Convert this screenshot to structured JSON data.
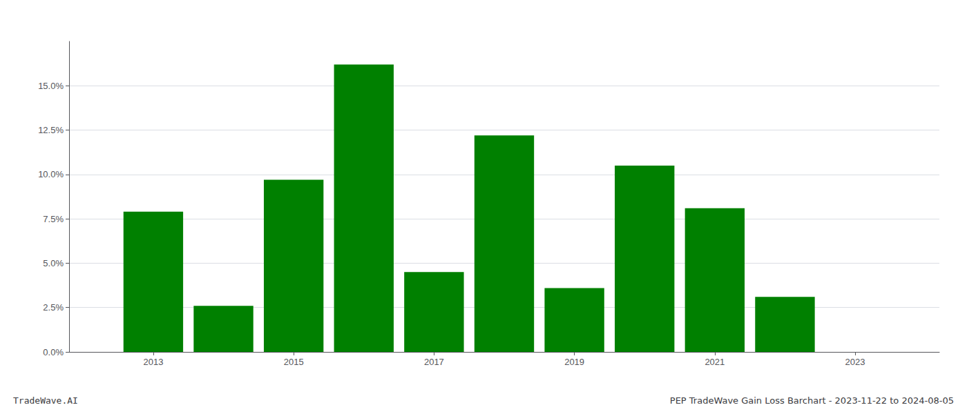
{
  "chart_data": {
    "type": "bar",
    "title": "PEP TradeWave Gain Loss Barchart - 2023-11-22 to 2024-08-05",
    "annotations": [
      "TradeWave.AI"
    ],
    "x": [
      2013,
      2014,
      2015,
      2016,
      2017,
      2018,
      2019,
      2020,
      2021,
      2022,
      2023
    ],
    "values": [
      0.079,
      0.026,
      0.097,
      0.162,
      0.045,
      0.122,
      0.036,
      0.105,
      0.081,
      0.031,
      0.0
    ],
    "color": "#008000",
    "xlim": [
      2011.8,
      2024.2
    ],
    "xticks": [
      2013,
      2015,
      2017,
      2019,
      2021,
      2023
    ],
    "ylim": [
      0,
      0.175
    ],
    "yticks": [
      {
        "value": 0.0,
        "label": "0.0%"
      },
      {
        "value": 0.025,
        "label": "2.5%"
      },
      {
        "value": 0.05,
        "label": "5.0%"
      },
      {
        "value": 0.075,
        "label": "7.5%"
      },
      {
        "value": 0.1,
        "label": "10.0%"
      },
      {
        "value": 0.125,
        "label": "12.5%"
      },
      {
        "value": 0.15,
        "label": "15.0%"
      }
    ],
    "grid": true
  }
}
